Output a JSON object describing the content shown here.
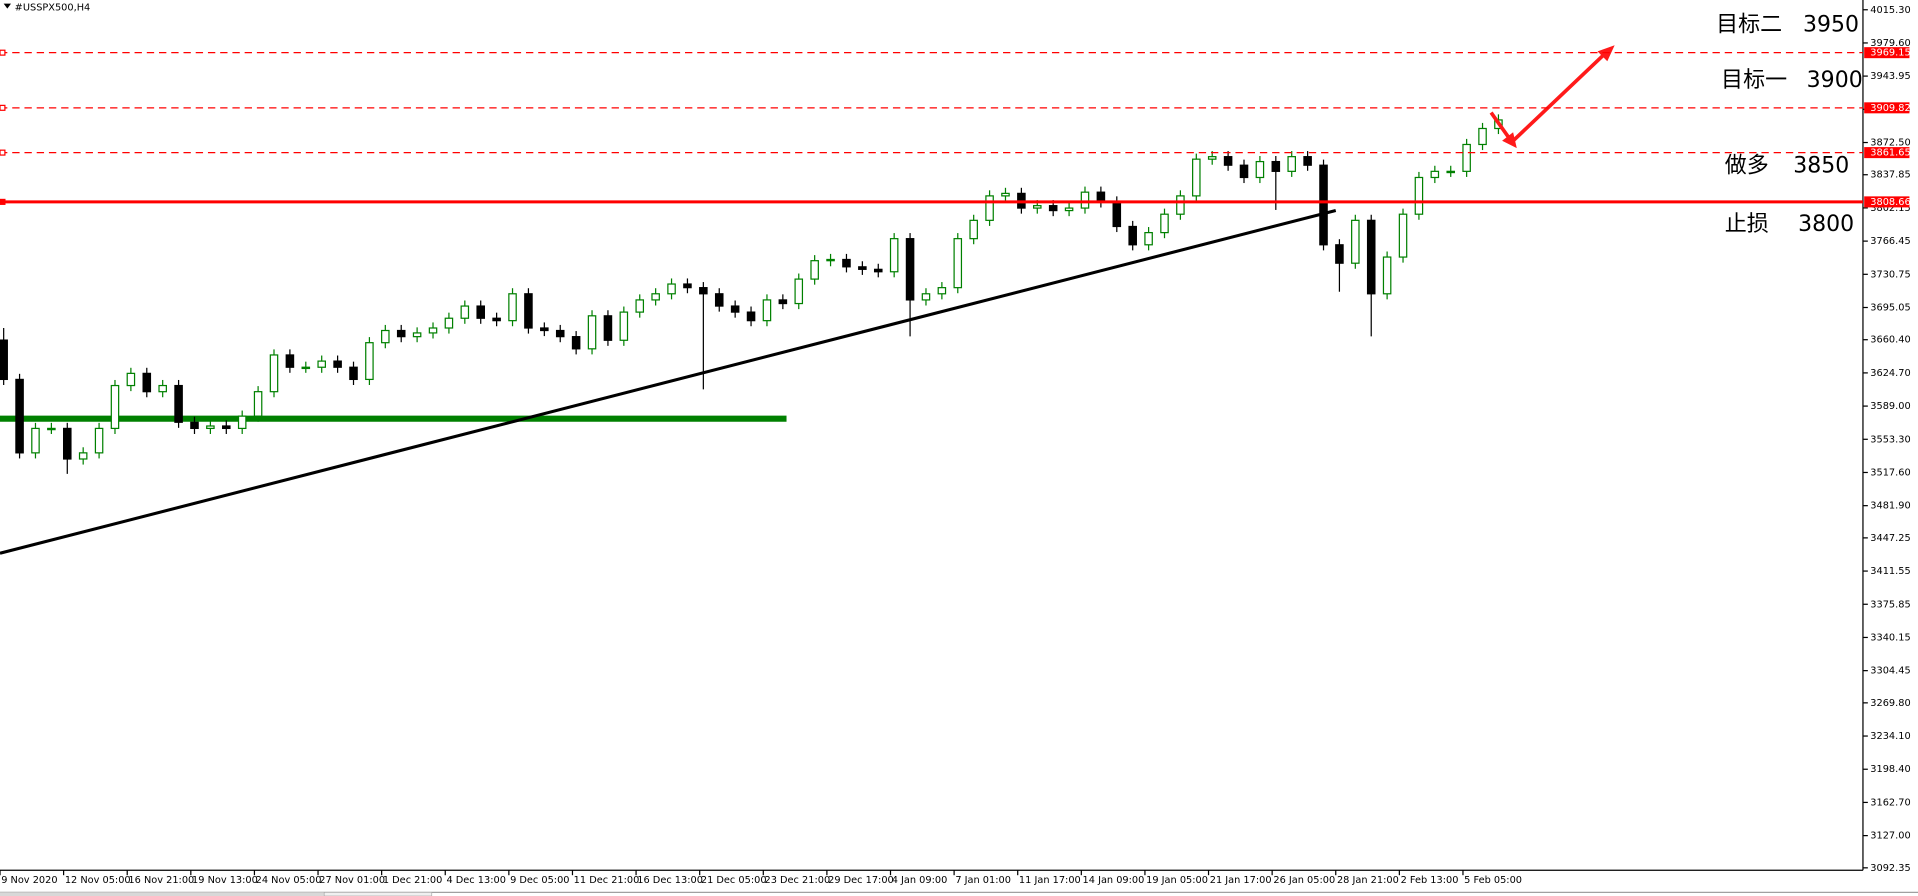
{
  "chart_data": {
    "type": "candlestick",
    "title": "#USSPX500,H4",
    "categories": [
      "9 Nov 2020",
      null,
      null,
      null,
      "12 Nov 05:00",
      null,
      null,
      null,
      "16 Nov 21:00",
      null,
      null,
      null,
      "19 Nov 13:00",
      null,
      null,
      null,
      "24 Nov 05:00",
      null,
      null,
      null,
      "27 Nov 01:00",
      null,
      null,
      null,
      "1 Dec 21:00",
      null,
      null,
      null,
      "4 Dec 13:00",
      null,
      null,
      null,
      "9 Dec 05:00",
      null,
      null,
      null,
      "11 Dec 21:00",
      null,
      null,
      null,
      "16 Dec 13:00",
      null,
      null,
      null,
      "21 Dec 05:00",
      null,
      null,
      null,
      "23 Dec 21:00",
      null,
      null,
      null,
      "29 Dec 17:00",
      null,
      null,
      null,
      "4 Jan 09:00",
      null,
      null,
      null,
      "7 Jan 01:00",
      null,
      null,
      null,
      "11 Jan 17:00",
      null,
      null,
      null,
      "14 Jan 09:00",
      null,
      null,
      null,
      "19 Jan 05:00",
      null,
      null,
      null,
      "21 Jan 17:00",
      null,
      null,
      null,
      "26 Jan 05:00",
      null,
      null,
      null,
      "28 Jan 21:00",
      null,
      null,
      null,
      "2 Feb 13:00",
      null,
      null,
      null,
      "5 Feb 05:00",
      null,
      null
    ],
    "open": [
      3660.0,
      3617.7,
      3538.7,
      3565.0,
      3565.0,
      3532.1,
      3538.7,
      3565.0,
      3611.1,
      3624.2,
      3604.5,
      3611.1,
      3571.6,
      3565.0,
      3567.6,
      3565.0,
      3578.2,
      3604.5,
      3644.0,
      3630.8,
      3630.8,
      3637.4,
      3630.8,
      3617.7,
      3657.2,
      3670.3,
      3663.7,
      3667.7,
      3673.0,
      3683.5,
      3696.6,
      3683.5,
      3680.9,
      3709.8,
      3673.0,
      3670.3,
      3663.7,
      3650.6,
      3686.1,
      3659.8,
      3690.1,
      3703.2,
      3709.8,
      3720.3,
      3716.4,
      3709.8,
      3696.6,
      3690.1,
      3680.9,
      3703.2,
      3699.3,
      3725.6,
      3745.4,
      3746.7,
      3738.8,
      3736.1,
      3733.5,
      3769.1,
      3703.2,
      3709.8,
      3716.4,
      3769.1,
      3788.8,
      3815.1,
      3817.8,
      3802.0,
      3804.6,
      3799.3,
      3802.0,
      3819.1,
      3808.6,
      3782.2,
      3762.5,
      3775.6,
      3795.4,
      3815.1,
      3854.6,
      3857.3,
      3848.1,
      3834.9,
      3852.0,
      3841.5,
      3857.3,
      3848.1,
      3762.5,
      3742.7,
      3788.8,
      3709.8,
      3749.3,
      3795.4,
      3834.9,
      3841.5,
      3841.5,
      3870.4,
      3887.6
    ],
    "high": [
      3673.0,
      3623.7,
      3571.0,
      3571.0,
      3571.0,
      3544.7,
      3571.0,
      3617.1,
      3630.2,
      3630.2,
      3617.1,
      3617.1,
      3577.6,
      3573.6,
      3573.6,
      3584.2,
      3610.5,
      3650.0,
      3650.0,
      3636.8,
      3643.4,
      3643.4,
      3636.8,
      3663.2,
      3676.3,
      3676.3,
      3673.7,
      3679.0,
      3689.5,
      3702.6,
      3702.6,
      3689.5,
      3715.8,
      3715.8,
      3679.0,
      3676.3,
      3669.7,
      3692.1,
      3692.1,
      3696.1,
      3709.2,
      3715.8,
      3726.3,
      3726.3,
      3722.4,
      3715.8,
      3702.6,
      3696.1,
      3709.2,
      3709.2,
      3731.6,
      3751.4,
      3752.7,
      3752.7,
      3744.8,
      3742.1,
      3775.1,
      3775.1,
      3715.8,
      3722.4,
      3775.1,
      3794.8,
      3821.1,
      3823.8,
      3823.8,
      3810.6,
      3810.6,
      3808.0,
      3825.1,
      3825.1,
      3814.6,
      3788.2,
      3781.6,
      3801.4,
      3821.1,
      3860.6,
      3863.3,
      3863.3,
      3854.1,
      3858.0,
      3858.0,
      3863.3,
      3863.3,
      3854.1,
      3768.5,
      3794.8,
      3794.8,
      3755.3,
      3801.4,
      3840.9,
      3847.5,
      3847.5,
      3876.4,
      3893.6,
      3902.8
    ],
    "low": [
      3611.7,
      3532.7,
      3532.7,
      3559.0,
      3516.1,
      3526.1,
      3532.7,
      3559.0,
      3605.1,
      3598.5,
      3598.5,
      3565.6,
      3559.0,
      3559.0,
      3559.0,
      3559.0,
      3572.2,
      3598.5,
      3624.8,
      3624.8,
      3624.8,
      3624.8,
      3611.7,
      3611.7,
      3651.2,
      3657.7,
      3657.7,
      3661.7,
      3667.0,
      3677.5,
      3677.5,
      3674.9,
      3674.9,
      3667.0,
      3664.3,
      3657.7,
      3644.6,
      3644.6,
      3653.8,
      3653.8,
      3684.1,
      3697.2,
      3703.8,
      3710.4,
      3607.0,
      3690.6,
      3684.1,
      3674.9,
      3674.9,
      3693.3,
      3693.3,
      3719.6,
      3739.4,
      3732.8,
      3730.1,
      3727.5,
      3727.5,
      3664.0,
      3697.2,
      3703.8,
      3710.4,
      3763.1,
      3782.8,
      3809.1,
      3796.0,
      3796.0,
      3793.3,
      3793.3,
      3796.0,
      3802.6,
      3776.2,
      3756.5,
      3756.5,
      3769.6,
      3789.4,
      3809.1,
      3848.6,
      3842.1,
      3828.9,
      3828.9,
      3800.0,
      3835.5,
      3842.1,
      3756.5,
      3712.0,
      3736.7,
      3664.0,
      3703.8,
      3743.3,
      3789.4,
      3828.9,
      3835.5,
      3835.5,
      3864.4,
      3881.6
    ],
    "close": [
      3617.7,
      3538.7,
      3565.0,
      3565.0,
      3532.1,
      3538.7,
      3565.0,
      3611.1,
      3624.2,
      3604.5,
      3611.1,
      3571.6,
      3565.0,
      3567.6,
      3565.0,
      3578.2,
      3604.5,
      3644.0,
      3630.8,
      3630.8,
      3637.4,
      3630.8,
      3617.7,
      3657.2,
      3670.3,
      3663.7,
      3667.7,
      3673.0,
      3683.5,
      3696.6,
      3683.5,
      3680.9,
      3709.8,
      3673.0,
      3670.3,
      3663.7,
      3650.6,
      3686.1,
      3659.8,
      3690.1,
      3703.2,
      3709.8,
      3720.3,
      3716.4,
      3709.8,
      3696.6,
      3690.1,
      3680.9,
      3703.2,
      3699.3,
      3725.6,
      3745.4,
      3746.7,
      3738.8,
      3736.1,
      3733.5,
      3769.1,
      3703.2,
      3709.8,
      3716.4,
      3769.1,
      3788.8,
      3815.1,
      3817.8,
      3802.0,
      3804.6,
      3799.3,
      3802.0,
      3819.1,
      3808.6,
      3782.2,
      3762.5,
      3775.6,
      3795.4,
      3815.1,
      3854.6,
      3857.3,
      3848.1,
      3834.9,
      3852.0,
      3841.5,
      3857.3,
      3848.1,
      3762.5,
      3742.7,
      3788.8,
      3709.8,
      3749.3,
      3795.4,
      3834.9,
      3841.5,
      3841.5,
      3870.4,
      3887.6,
      3896.8
    ],
    "up_color": "#008000",
    "down_color": "#000000",
    "ylim": [
      3089.7,
      4025.8
    ],
    "yticks": [
      {
        "value": 4015.3,
        "label": "4015.30"
      },
      {
        "value": 3979.6,
        "label": "3979.60"
      },
      3943.95,
      3908.25,
      {
        "value": 3872.5,
        "label": "3872.50"
      },
      3837.85,
      3802.15,
      3766.45,
      3730.75,
      3695.05,
      {
        "value": 3660.4,
        "label": "3660.40"
      },
      {
        "value": 3624.7,
        "label": "3624.70"
      },
      {
        "value": 3589,
        "label": "3589.00"
      },
      {
        "value": 3553.3,
        "label": "3553.30"
      },
      {
        "value": 3517.6,
        "label": "3517.60"
      },
      {
        "value": 3481.9,
        "label": "3481.90"
      },
      3447.25,
      3411.55,
      3375.85,
      3340.15,
      3304.45,
      {
        "value": 3269.8,
        "label": "3269.80"
      },
      {
        "value": 3234.1,
        "label": "3234.10"
      },
      {
        "value": 3198.4,
        "label": "3198.40"
      },
      {
        "value": 3162.7,
        "label": "3162.70"
      },
      {
        "value": 3127,
        "label": "3127.00"
      },
      3092.35
    ],
    "levels": [
      {
        "value": 3969.15,
        "style": "dashed",
        "color": "#ff0000"
      },
      {
        "value": 3909.82,
        "style": "dashed",
        "color": "#ff0000"
      },
      {
        "value": 3861.65,
        "style": "dashed",
        "color": "#ff0000"
      },
      {
        "value": 3808.66,
        "style": "solid",
        "color": "#ff0000"
      }
    ],
    "support": {
      "value": 3575.5,
      "color": "#008000"
    },
    "trendline": {
      "from": 3430.7,
      "to": 3799.4,
      "color": "#000000"
    },
    "annotations": [
      {
        "text": "目标二",
        "value": 3950
      },
      {
        "text": "目标一",
        "value": 3900
      },
      {
        "text": "做多",
        "value": 3850
      },
      {
        "text": "止损",
        "value": 3800
      }
    ],
    "grid": false
  }
}
